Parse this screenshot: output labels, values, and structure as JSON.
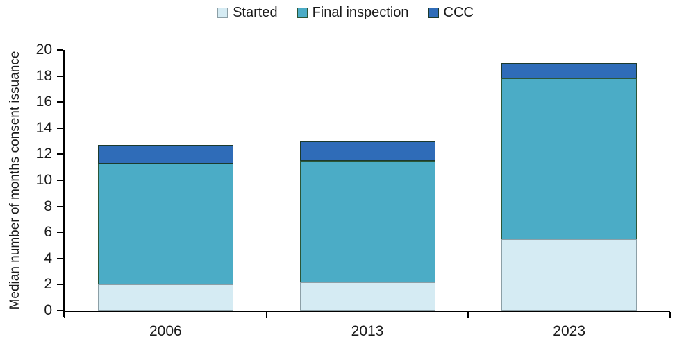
{
  "chart_data": {
    "type": "bar",
    "stacked": true,
    "title": "",
    "categories": [
      "2006",
      "2013",
      "2023"
    ],
    "series": [
      {
        "name": "Started",
        "values": [
          2.0,
          2.2,
          5.5
        ],
        "fill": "#D5EBF3",
        "border": "#8C9FA6"
      },
      {
        "name": "Final inspection",
        "values": [
          9.3,
          9.3,
          12.3
        ],
        "fill": "#4BACC6",
        "border": "#2B5637"
      },
      {
        "name": "CCC",
        "values": [
          1.4,
          1.5,
          1.2
        ],
        "fill": "#2F6CB8",
        "border": "#1C3A2C"
      }
    ],
    "stack_totals": [
      12.7,
      13.0,
      19.0
    ],
    "xlabel": "",
    "ylabel": "Median number of months consent issuance",
    "ylim": [
      0,
      20
    ],
    "yticks": [
      0,
      2,
      4,
      6,
      8,
      10,
      12,
      14,
      16,
      18,
      20
    ],
    "grid": false,
    "legend_position": "top-center",
    "axis_color": "#000000",
    "text_color": "#1a1a1a",
    "background": "#FFFFFF"
  }
}
